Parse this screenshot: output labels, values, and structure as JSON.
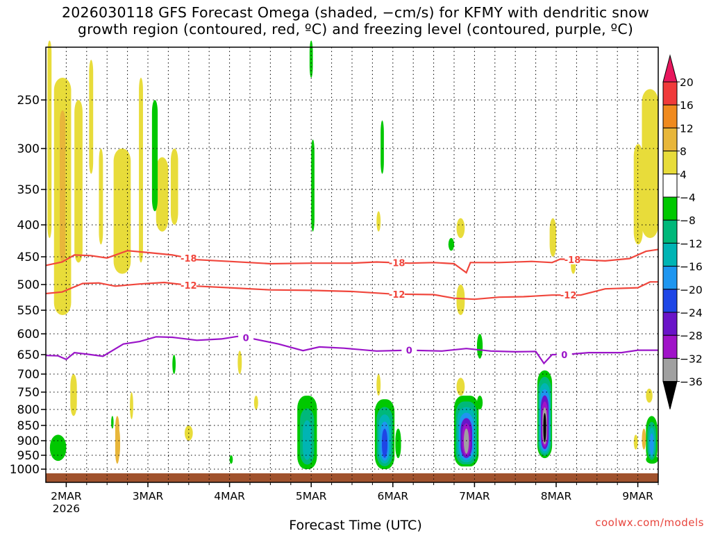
{
  "title": {
    "line1": "2026030118 GFS Forecast Omega (shaded, −cm/s) for KFMY with dendritic snow",
    "line2": "growth region (contoured, red, ºC) and freezing level (contoured, purple, ºC)"
  },
  "credit": "coolwx.com/models",
  "chart_data": {
    "type": "heatmap",
    "xlabel": "Forecast Time (UTC)",
    "ylabel": "",
    "x_ticks": [
      "2MAR",
      "3MAR",
      "4MAR",
      "5MAR",
      "6MAR",
      "7MAR",
      "8MAR",
      "9MAR"
    ],
    "x_tick_sub": "2026",
    "x_range_days": [
      1.75,
      9.25
    ],
    "y_axis": "pressure (hPa)",
    "y_ticks": [
      250,
      300,
      350,
      400,
      450,
      500,
      550,
      600,
      650,
      700,
      750,
      800,
      850,
      900,
      950,
      1000
    ],
    "y_range": [
      200,
      1013
    ],
    "colorbar": {
      "levels": [
        "20",
        "16",
        "12",
        "8",
        "4",
        "−4",
        "−8",
        "−12",
        "−16",
        "−20",
        "−24",
        "−28",
        "−32",
        "−36"
      ],
      "colors": [
        "#e8175d",
        "#f03a3a",
        "#f08a1e",
        "#e8b63a",
        "#e8dc3a",
        "#ffffff",
        "#00c800",
        "#00b87a",
        "#00b4b4",
        "#1e96f0",
        "#1e46e6",
        "#6a14c8",
        "#a014c8",
        "#a0a0a0",
        "#000000"
      ]
    },
    "contours": {
      "dgz_minus18": {
        "label": "-18",
        "color": "#f0463c",
        "points": [
          [
            1.75,
            465
          ],
          [
            1.95,
            459
          ],
          [
            2.1,
            447
          ],
          [
            2.3,
            448
          ],
          [
            2.5,
            452
          ],
          [
            2.75,
            440
          ],
          [
            3.0,
            443
          ],
          [
            3.3,
            447
          ],
          [
            3.6,
            455
          ],
          [
            4.0,
            458
          ],
          [
            4.5,
            462
          ],
          [
            5.0,
            461
          ],
          [
            5.5,
            461
          ],
          [
            5.8,
            459
          ],
          [
            6.2,
            461
          ],
          [
            6.5,
            460
          ],
          [
            6.75,
            462
          ],
          [
            6.9,
            478
          ],
          [
            6.95,
            460
          ],
          [
            7.3,
            460
          ],
          [
            7.7,
            458
          ],
          [
            7.95,
            460
          ],
          [
            8.05,
            454
          ],
          [
            8.3,
            455
          ],
          [
            8.6,
            457
          ],
          [
            8.9,
            453
          ],
          [
            9.1,
            441
          ],
          [
            9.25,
            438
          ]
        ],
        "labels_at": [
          3.5,
          6.05,
          8.2
        ]
      },
      "dgz_minus12": {
        "label": "-12",
        "color": "#f0463c",
        "points": [
          [
            1.75,
            517
          ],
          [
            1.95,
            514
          ],
          [
            2.2,
            498
          ],
          [
            2.4,
            497
          ],
          [
            2.6,
            503
          ],
          [
            2.9,
            499
          ],
          [
            3.2,
            496
          ],
          [
            3.6,
            503
          ],
          [
            4.0,
            506
          ],
          [
            4.5,
            510
          ],
          [
            5.0,
            511
          ],
          [
            5.5,
            513
          ],
          [
            6.0,
            518
          ],
          [
            6.5,
            519
          ],
          [
            6.75,
            526
          ],
          [
            7.0,
            528
          ],
          [
            7.3,
            524
          ],
          [
            7.6,
            523
          ],
          [
            7.95,
            520
          ],
          [
            8.3,
            520
          ],
          [
            8.6,
            508
          ],
          [
            9.0,
            506
          ],
          [
            9.15,
            495
          ],
          [
            9.25,
            495
          ]
        ],
        "labels_at": [
          3.5,
          6.05,
          8.15
        ]
      },
      "freezing_level": {
        "label": "0",
        "color": "#9a14c8",
        "points": [
          [
            1.75,
            652
          ],
          [
            1.9,
            653
          ],
          [
            2.0,
            662
          ],
          [
            2.1,
            645
          ],
          [
            2.3,
            650
          ],
          [
            2.45,
            654
          ],
          [
            2.7,
            624
          ],
          [
            2.9,
            618
          ],
          [
            3.1,
            607
          ],
          [
            3.3,
            608
          ],
          [
            3.6,
            615
          ],
          [
            3.9,
            612
          ],
          [
            4.1,
            606
          ],
          [
            4.3,
            612
          ],
          [
            4.6,
            624
          ],
          [
            4.9,
            640
          ],
          [
            5.1,
            631
          ],
          [
            5.4,
            634
          ],
          [
            5.8,
            641
          ],
          [
            6.2,
            639
          ],
          [
            6.6,
            641
          ],
          [
            6.9,
            635
          ],
          [
            7.2,
            641
          ],
          [
            7.5,
            643
          ],
          [
            7.75,
            642
          ],
          [
            7.85,
            672
          ],
          [
            7.95,
            650
          ],
          [
            8.1,
            650
          ],
          [
            8.4,
            645
          ],
          [
            8.8,
            645
          ],
          [
            9.0,
            639
          ],
          [
            9.25,
            639
          ]
        ],
        "labels_at": [
          4.2,
          6.2,
          8.1
        ]
      }
    },
    "shaded_regions": [
      {
        "name": "upper-yellow-band-2mar",
        "day": [
          1.85,
          2.05
        ],
        "p": [
          230,
          560
        ],
        "omega": 4
      },
      {
        "name": "upper-orange-core-2mar",
        "day": [
          1.92,
          2.0
        ],
        "p": [
          250,
          470
        ],
        "omega": 8
      },
      {
        "name": "yellow-2.7mar",
        "day": [
          2.6,
          2.78
        ],
        "p": [
          300,
          470
        ],
        "omega": 4
      },
      {
        "name": "yellow-9mar-upper",
        "day": [
          9.05,
          9.25
        ],
        "p": [
          240,
          420
        ],
        "omega": 4
      },
      {
        "name": "cyan-blob-5mar",
        "day": [
          4.85,
          5.05
        ],
        "p": [
          760,
          1000
        ],
        "omega": -12
      },
      {
        "name": "purple-blob-6mar",
        "day": [
          5.8,
          6.0
        ],
        "p": [
          800,
          980
        ],
        "omega": -20
      },
      {
        "name": "purple-blob-7mar",
        "day": [
          6.75,
          7.05
        ],
        "p": [
          760,
          980
        ],
        "omega": -28
      },
      {
        "name": "black-core-8mar",
        "day": [
          7.8,
          7.9
        ],
        "p": [
          720,
          960
        ],
        "omega": -36
      },
      {
        "name": "blue-blob-9mar",
        "day": [
          9.1,
          9.25
        ],
        "p": [
          830,
          980
        ],
        "omega": -16
      }
    ]
  }
}
